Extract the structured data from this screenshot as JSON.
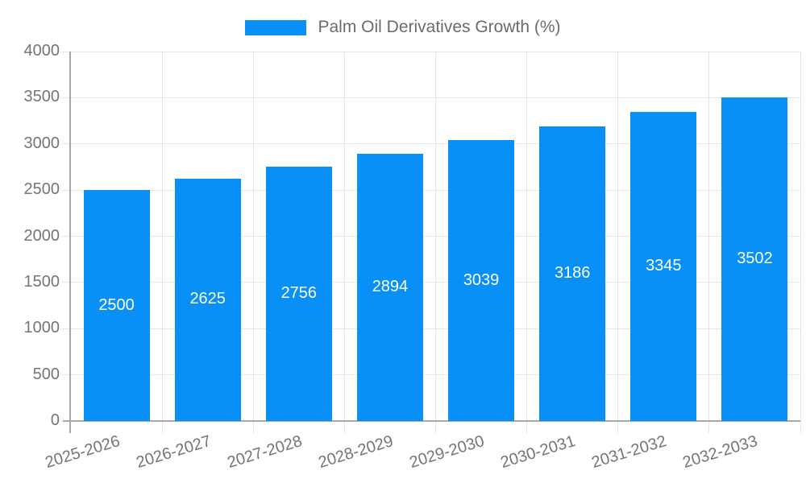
{
  "chart_data": {
    "type": "bar",
    "legend_label": "Palm Oil Derivatives Growth (%)",
    "legend_position": "top",
    "categories": [
      "2025-2026",
      "2026-2027",
      "2027-2028",
      "2028-2029",
      "2029-2030",
      "2030-2031",
      "2031-2032",
      "2032-2033"
    ],
    "values": [
      2500,
      2625,
      2756,
      2894,
      3039,
      3186,
      3345,
      3502
    ],
    "value_labels": [
      "2500",
      "2625",
      "2756",
      "2894",
      "3039",
      "3186",
      "3345",
      "3502"
    ],
    "title": "",
    "xlabel": "",
    "ylabel": "",
    "ylim": [
      0,
      4000
    ],
    "yticks": [
      0,
      500,
      1000,
      1500,
      2000,
      2500,
      3000,
      3500,
      4000
    ],
    "grid": true,
    "colors": {
      "bar": "#0990f7",
      "grid": "#e6e6e6",
      "axis": "#a8a8a8",
      "tick_text": "#757575",
      "value_text": "#ffffff",
      "legend_text": "#6b6b6b",
      "background": "#ffffff"
    }
  }
}
